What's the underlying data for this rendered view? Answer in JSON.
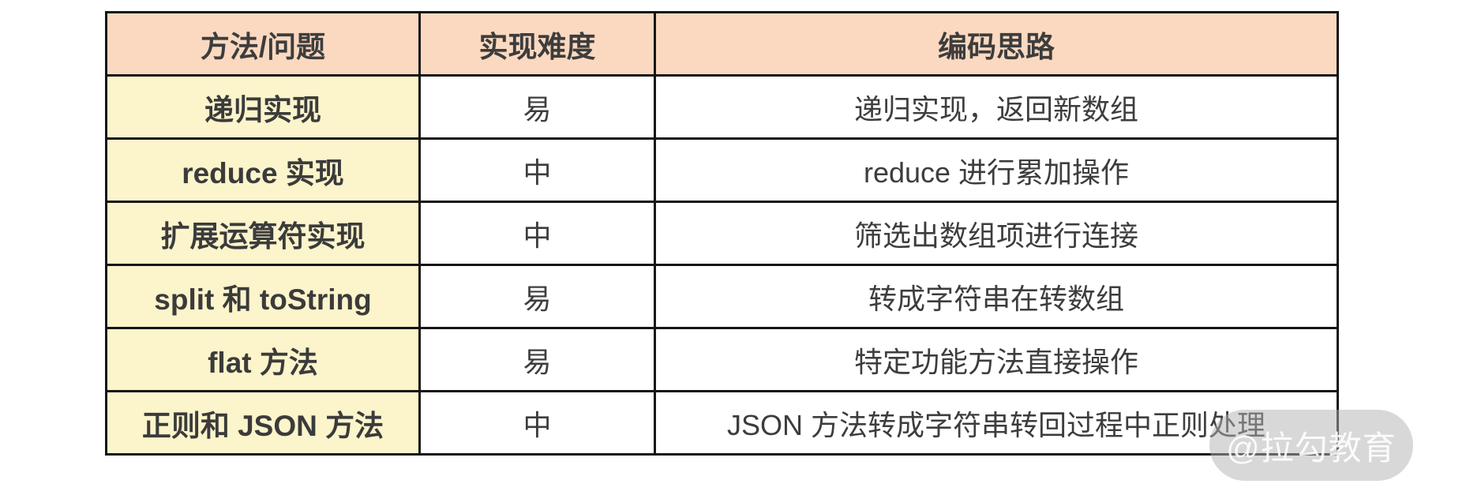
{
  "chart_data": {
    "type": "table",
    "title": "",
    "columns": [
      "方法/问题",
      "实现难度",
      "编码思路"
    ],
    "rows": [
      [
        "递归实现",
        "易",
        "递归实现，返回新数组"
      ],
      [
        "reduce 实现",
        "中",
        "reduce 进行累加操作"
      ],
      [
        "扩展运算符实现",
        "中",
        "筛选出数组项进行连接"
      ],
      [
        "split 和 toString",
        "易",
        "转成字符串在转数组"
      ],
      [
        "flat 方法",
        "易",
        "特定功能方法直接操作"
      ],
      [
        "正则和 JSON 方法",
        "中",
        "JSON 方法转成字符串转回过程中正则处理"
      ]
    ],
    "layout": {
      "header_bg": "#fbd9c0",
      "method_column_bg": "#fcf4cb",
      "body_bg": "#ffffff",
      "border_color": "#151515",
      "text_color": "#3d3d3d"
    }
  },
  "table": {
    "headers": {
      "method": "方法/问题",
      "difficulty": "实现难度",
      "approach": "编码思路"
    },
    "rows": [
      {
        "method": "递归实现",
        "difficulty": "易",
        "approach": "递归实现，返回新数组"
      },
      {
        "method": "reduce 实现",
        "difficulty": "中",
        "approach": "reduce 进行累加操作"
      },
      {
        "method": "扩展运算符实现",
        "difficulty": "中",
        "approach": "筛选出数组项进行连接"
      },
      {
        "method": "split 和 toString",
        "difficulty": "易",
        "approach": "转成字符串在转数组"
      },
      {
        "method": "flat 方法",
        "difficulty": "易",
        "approach": "特定功能方法直接操作"
      },
      {
        "method": "正则和 JSON 方法",
        "difficulty": "中",
        "approach": "JSON 方法转成字符串转回过程中正则处理"
      }
    ]
  },
  "watermark": {
    "label": "@拉勾教育",
    "bg_color": "#b2b2b2",
    "text_color": "#ffffff"
  }
}
